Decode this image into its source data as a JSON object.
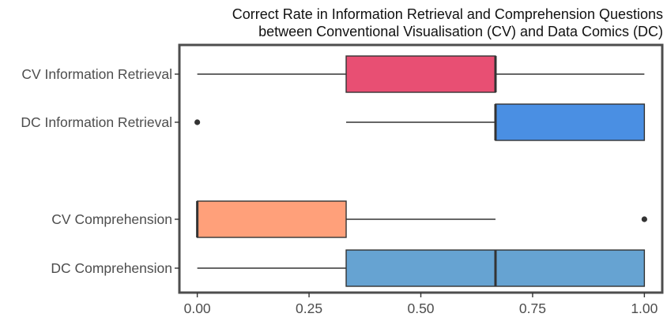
{
  "chart_data": {
    "type": "boxplot",
    "title": [
      "Correct Rate in Information Retrieval and Comprehension Questions",
      "between Conventional Visualisation (CV) and Data Comics (DC)"
    ],
    "xlabel": "",
    "ylabel": "",
    "xlim": [
      -0.04,
      1.04
    ],
    "x_ticks": [
      0,
      0.25,
      0.5,
      0.75,
      1
    ],
    "x_tick_labels": [
      "0.00",
      "0.25",
      "0.50",
      "0.75",
      "1.00"
    ],
    "grid": false,
    "legend": "none",
    "series": [
      {
        "label": "CV Information Retrieval",
        "color": "#e84f73",
        "whisker_low": 0,
        "q1": 0.333,
        "median": 0.667,
        "q3": 0.667,
        "whisker_high": 1,
        "outliers": []
      },
      {
        "label": "DC Information Retrieval",
        "color": "#4a8fe3",
        "whisker_low": 0.333,
        "q1": 0.667,
        "median": 0.667,
        "q3": 1,
        "whisker_high": 1,
        "outliers": [
          0
        ]
      },
      {
        "label": "CV Comprehension",
        "color": "#ffa07a",
        "whisker_low": 0,
        "q1": 0,
        "median": 0,
        "q3": 0.333,
        "whisker_high": 0.667,
        "outliers": [
          1
        ]
      },
      {
        "label": "DC Comprehension",
        "color": "#66a3d2",
        "whisker_low": 0,
        "q1": 0.333,
        "median": 0.667,
        "q3": 1,
        "whisker_high": 1,
        "outliers": []
      }
    ]
  }
}
